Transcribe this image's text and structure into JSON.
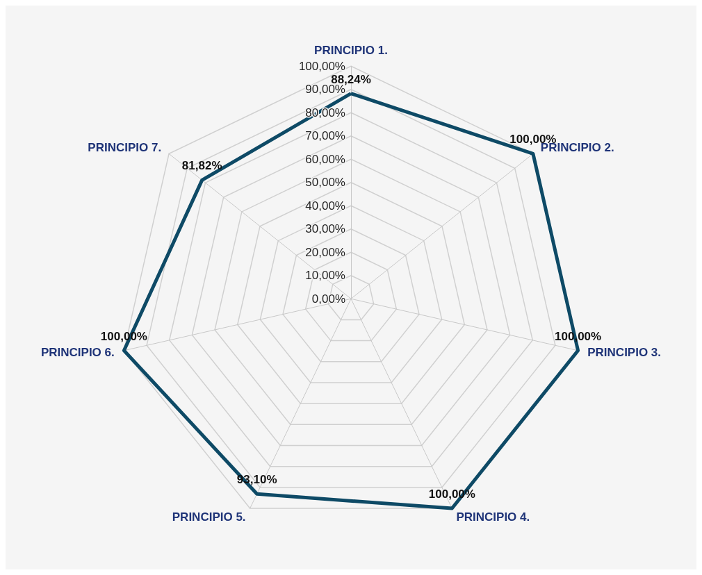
{
  "chart_data": {
    "type": "radar",
    "categories": [
      "PRINCIPIO 1.",
      "PRINCIPIO 2.",
      "PRINCIPIO 3.",
      "PRINCIPIO 4.",
      "PRINCIPIO 5.",
      "PRINCIPIO 6.",
      "PRINCIPIO 7."
    ],
    "series": [
      {
        "color": "#0e4a66",
        "values": [
          88.24,
          100,
          100,
          100,
          93.1,
          100,
          81.82
        ],
        "value_labels": [
          "88,24%",
          "100,00%",
          "100,00%",
          "100,00%",
          "93,10%",
          "100,00%",
          "81,82%"
        ]
      }
    ],
    "ylim": [
      0,
      100
    ],
    "yticks": [
      {
        "value": 0,
        "label": "0,00%"
      },
      {
        "value": 10,
        "label": "10,00%"
      },
      {
        "value": 20,
        "label": "20,00%"
      },
      {
        "value": 30,
        "label": "30,00%"
      },
      {
        "value": 40,
        "label": "40,00%"
      },
      {
        "value": 50,
        "label": "50,00%"
      },
      {
        "value": 60,
        "label": "60,00%"
      },
      {
        "value": 70,
        "label": "70,00%"
      },
      {
        "value": 80,
        "label": "80,00%"
      },
      {
        "value": 90,
        "label": "90,00%"
      },
      {
        "value": 100,
        "label": "100,00%"
      }
    ],
    "grid": true,
    "marker": "none",
    "line_style": "solid"
  }
}
